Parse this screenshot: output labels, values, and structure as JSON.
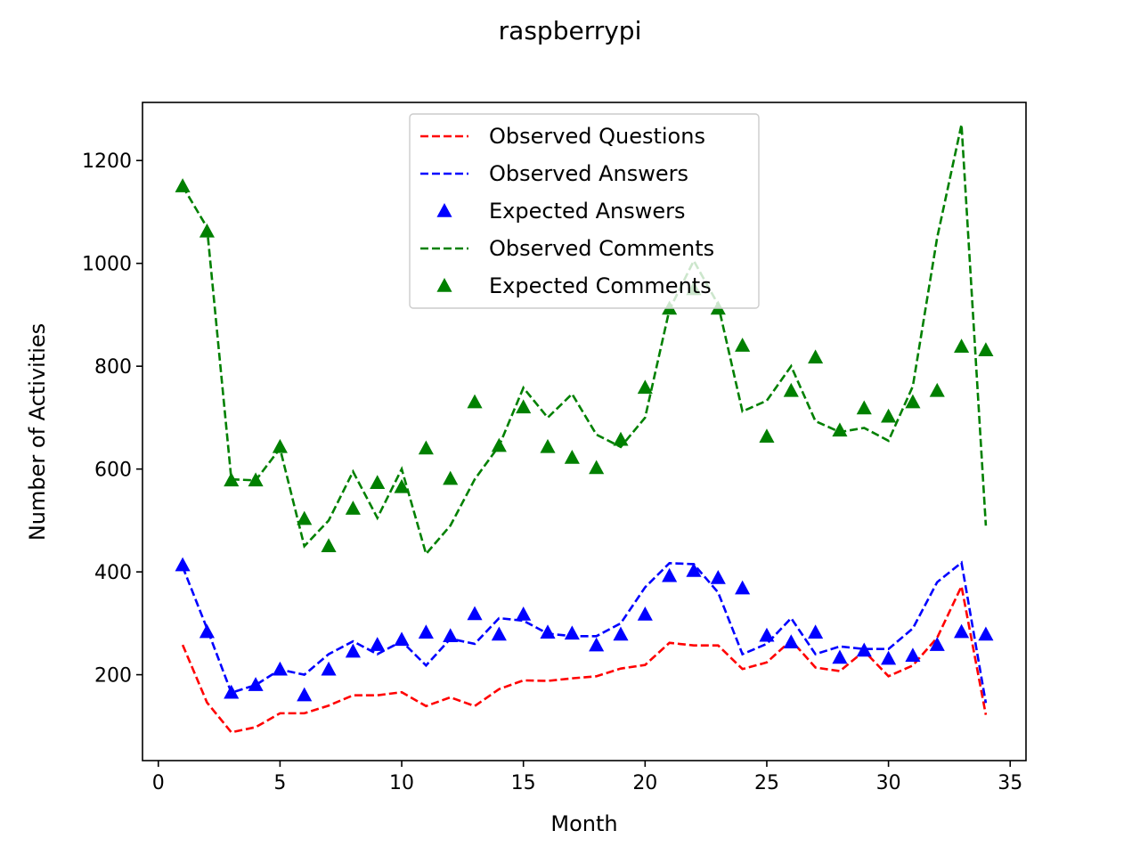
{
  "chart_data": {
    "type": "line",
    "title": "raspberrypi",
    "xlabel": "Month",
    "ylabel": "Number of Activities",
    "xlim": [
      -0.65,
      35.65
    ],
    "ylim": [
      33,
      1313
    ],
    "xticks": [
      0,
      5,
      10,
      15,
      20,
      25,
      30,
      35
    ],
    "yticks": [
      200,
      400,
      600,
      800,
      1000,
      1200
    ],
    "grid": false,
    "legend_position": "upper center",
    "x": [
      1,
      2,
      3,
      4,
      5,
      6,
      7,
      8,
      9,
      10,
      11,
      12,
      13,
      14,
      15,
      16,
      17,
      18,
      19,
      20,
      21,
      22,
      23,
      24,
      25,
      26,
      27,
      28,
      29,
      30,
      31,
      32,
      33,
      34
    ],
    "series": [
      {
        "name": "Observed Questions",
        "style": "dashed-line",
        "color": "#ff0000",
        "values": [
          258,
          146,
          88,
          98,
          125,
          125,
          140,
          160,
          160,
          166,
          139,
          156,
          139,
          172,
          189,
          188,
          193,
          197,
          212,
          219,
          262,
          257,
          257,
          211,
          224,
          267,
          214,
          207,
          246,
          197,
          218,
          272,
          372,
          122
        ]
      },
      {
        "name": "Observed Answers",
        "style": "dashed-line",
        "color": "#0000ff",
        "values": [
          410,
          290,
          165,
          180,
          210,
          200,
          240,
          265,
          240,
          265,
          218,
          270,
          260,
          310,
          305,
          280,
          275,
          275,
          300,
          370,
          417,
          415,
          360,
          240,
          260,
          310,
          240,
          255,
          250,
          250,
          290,
          380,
          418,
          145
        ]
      },
      {
        "name": "Expected Answers",
        "style": "triangle-marker",
        "color": "#0000ff",
        "values": [
          413,
          283,
          165,
          180,
          210,
          160,
          210,
          245,
          258,
          268,
          282,
          275,
          318,
          278,
          317,
          282,
          280,
          257,
          278,
          317,
          392,
          402,
          388,
          368,
          276,
          263,
          282,
          233,
          247,
          231,
          237,
          258,
          283,
          278
        ]
      },
      {
        "name": "Observed Comments",
        "style": "dashed-line",
        "color": "#008000",
        "values": [
          1150,
          1070,
          580,
          578,
          640,
          450,
          500,
          595,
          505,
          600,
          435,
          490,
          580,
          645,
          758,
          700,
          746,
          667,
          643,
          700,
          910,
          1005,
          920,
          712,
          733,
          800,
          693,
          672,
          680,
          655,
          761,
          1050,
          1270,
          490
        ]
      },
      {
        "name": "Expected Comments",
        "style": "triangle-marker",
        "color": "#008000",
        "values": [
          1150,
          1062,
          578,
          578,
          643,
          503,
          450,
          523,
          573,
          565,
          640,
          581,
          730,
          645,
          720,
          643,
          622,
          602,
          657,
          758,
          912,
          950,
          912,
          840,
          663,
          752,
          817,
          675,
          718,
          702,
          730,
          752,
          838,
          831
        ]
      }
    ]
  }
}
